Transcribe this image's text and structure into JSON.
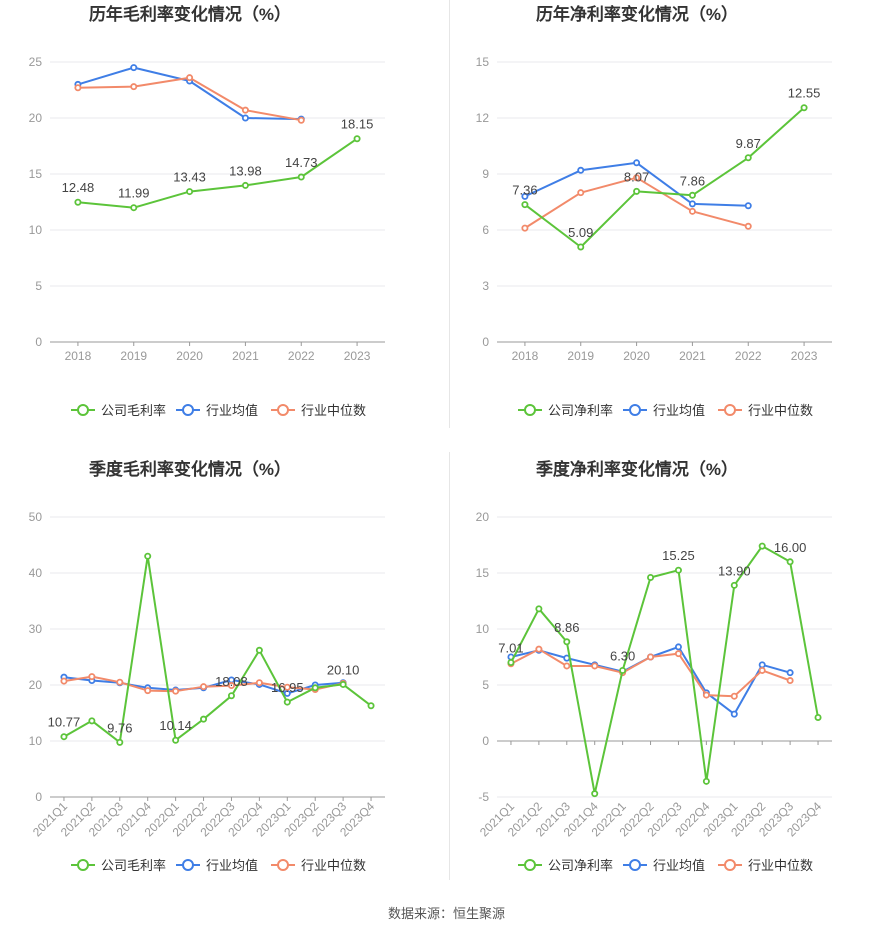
{
  "footer": {
    "source": "数据来源：恒生聚源"
  },
  "colors": {
    "company": "#5cc43a",
    "industry_avg": "#3f7ee6",
    "industry_median": "#f28a6a",
    "grid": "#e8e8ee",
    "axis": "#999999"
  },
  "chart_data": [
    {
      "type": "line",
      "title": "历年毛利率变化情况（%）",
      "categories": [
        "2018",
        "2019",
        "2020",
        "2021",
        "2022",
        "2023"
      ],
      "ylim": [
        0,
        25
      ],
      "yticks": [
        0,
        5,
        10,
        15,
        20,
        25
      ],
      "rotate_labels": false,
      "grid": true,
      "legend": "bottom-center",
      "series": [
        {
          "name": "公司毛利率",
          "key": "company",
          "values": [
            12.48,
            11.99,
            13.43,
            13.98,
            14.73,
            18.15
          ],
          "labels": [
            "12.48",
            "11.99",
            "13.43",
            "13.98",
            "14.73",
            "18.15"
          ]
        },
        {
          "name": "行业均值",
          "key": "industry_avg",
          "values": [
            23.0,
            24.5,
            23.3,
            20.0,
            19.9,
            null
          ]
        },
        {
          "name": "行业中位数",
          "key": "industry_median",
          "values": [
            22.7,
            22.8,
            23.6,
            20.7,
            19.8,
            null
          ]
        }
      ]
    },
    {
      "type": "line",
      "title": "历年净利率变化情况（%）",
      "categories": [
        "2018",
        "2019",
        "2020",
        "2021",
        "2022",
        "2023"
      ],
      "ylim": [
        0,
        15
      ],
      "yticks": [
        0,
        3,
        6,
        9,
        12,
        15
      ],
      "rotate_labels": false,
      "grid": true,
      "legend": "bottom-center",
      "series": [
        {
          "name": "公司净利率",
          "key": "company",
          "values": [
            7.36,
            5.09,
            8.07,
            7.86,
            9.87,
            12.55
          ],
          "labels": [
            "7.36",
            "5.09",
            "8.07",
            "7.86",
            "9.87",
            "12.55"
          ]
        },
        {
          "name": "行业均值",
          "key": "industry_avg",
          "values": [
            7.8,
            9.2,
            9.6,
            7.4,
            7.3,
            null
          ]
        },
        {
          "name": "行业中位数",
          "key": "industry_median",
          "values": [
            6.1,
            8.0,
            8.8,
            7.0,
            6.2,
            null
          ]
        }
      ]
    },
    {
      "type": "line",
      "title": "季度毛利率变化情况（%）",
      "categories": [
        "2021Q1",
        "2021Q2",
        "2021Q3",
        "2021Q4",
        "2022Q1",
        "2022Q2",
        "2022Q3",
        "2022Q4",
        "2023Q1",
        "2023Q2",
        "2023Q3",
        "2023Q4"
      ],
      "ylim": [
        0,
        50
      ],
      "yticks": [
        0,
        10,
        20,
        30,
        40,
        50
      ],
      "rotate_labels": true,
      "grid": true,
      "legend": "bottom-center",
      "series": [
        {
          "name": "公司毛利率",
          "key": "company",
          "values": [
            10.77,
            13.6,
            9.76,
            43.0,
            10.14,
            13.9,
            18.08,
            26.2,
            16.95,
            19.5,
            20.1,
            16.3
          ],
          "labels": [
            "10.77",
            "",
            "9.76",
            "",
            "10.14",
            "",
            "18.08",
            "",
            "16.95",
            "",
            "20.10",
            ""
          ]
        },
        {
          "name": "行业均值",
          "key": "industry_avg",
          "values": [
            21.4,
            20.8,
            20.4,
            19.5,
            19.1,
            19.5,
            20.9,
            20.1,
            18.5,
            20.0,
            20.4,
            null
          ]
        },
        {
          "name": "行业中位数",
          "key": "industry_median",
          "values": [
            20.7,
            21.5,
            20.5,
            19.0,
            18.9,
            19.7,
            19.9,
            20.4,
            19.6,
            19.2,
            20.3,
            null
          ]
        }
      ]
    },
    {
      "type": "line",
      "title": "季度净利率变化情况（%）",
      "categories": [
        "2021Q1",
        "2021Q2",
        "2021Q3",
        "2021Q4",
        "2022Q1",
        "2022Q2",
        "2022Q3",
        "2022Q4",
        "2023Q1",
        "2023Q2",
        "2023Q3",
        "2023Q4"
      ],
      "ylim": [
        -5,
        20
      ],
      "yticks": [
        -5,
        0,
        5,
        10,
        15,
        20
      ],
      "rotate_labels": true,
      "grid": true,
      "legend": "bottom-center",
      "series": [
        {
          "name": "公司净利率",
          "key": "company",
          "values": [
            7.01,
            11.8,
            8.86,
            -4.7,
            6.3,
            14.6,
            15.25,
            -3.6,
            13.9,
            17.4,
            16.0,
            2.1
          ],
          "labels": [
            "7.01",
            "",
            "8.86",
            "",
            "6.30",
            "",
            "15.25",
            "",
            "13.90",
            "",
            "16.00",
            ""
          ]
        },
        {
          "name": "行业均值",
          "key": "industry_avg",
          "values": [
            7.5,
            8.1,
            7.4,
            6.8,
            6.2,
            7.5,
            8.4,
            4.3,
            2.4,
            6.8,
            6.1,
            null
          ]
        },
        {
          "name": "行业中位数",
          "key": "industry_median",
          "values": [
            6.9,
            8.2,
            6.7,
            6.7,
            6.1,
            7.5,
            7.8,
            4.1,
            4.0,
            6.3,
            5.4,
            null
          ]
        }
      ]
    }
  ]
}
